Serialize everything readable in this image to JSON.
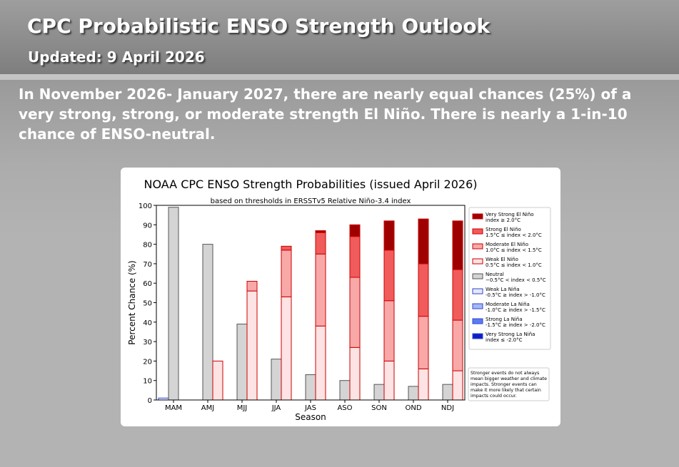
{
  "header": {
    "title": "CPC Probabilistic ENSO Strength Outlook",
    "updated": "Updated:  9 April 2026"
  },
  "summary": "In November 2026- January 2027, there are nearly equal chances (25%) of a very strong, strong, or moderate strength El Niño.  There is nearly a 1-in-10 chance of ENSO-neutral.",
  "colors": {
    "very_strong_el_nino": "#9e0000",
    "strong_el_nino": "#f05b5b",
    "moderate_el_nino": "#f9a8a8",
    "weak_el_nino": "#fde3e3",
    "neutral": "#d4d4d4",
    "weak_la_nina": "#e3e9ff",
    "moderate_la_nina": "#a3b8f8",
    "strong_la_nina": "#5b7cf0",
    "very_strong_la_nina": "#0b1fc9"
  },
  "chart_data": {
    "type": "bar",
    "title": "NOAA CPC ENSO Strength Probabilities (issued April 2026)",
    "subtitle": "based on thresholds in ERSSTv5 Relative Niño-3.4 index",
    "xlabel": "Season",
    "ylabel": "Percent Chance (%)",
    "ylim": [
      0,
      100
    ],
    "yticks": [
      0,
      10,
      20,
      30,
      40,
      50,
      60,
      70,
      80,
      90,
      100
    ],
    "categories": [
      "MAM",
      "AMJ",
      "MJJ",
      "JJA",
      "JAS",
      "ASO",
      "SON",
      "OND",
      "NDJ"
    ],
    "groups": [
      {
        "name": "La Niña",
        "values": [
          1,
          0,
          0,
          0,
          0,
          0,
          0,
          0,
          0
        ],
        "stack": [
          {
            "key": "weak_la_nina",
            "values": [
              1,
              0,
              0,
              0,
              0,
              0,
              0,
              0,
              0
            ]
          },
          {
            "key": "moderate_la_nina",
            "values": [
              0,
              0,
              0,
              0,
              0,
              0,
              0,
              0,
              0
            ]
          },
          {
            "key": "strong_la_nina",
            "values": [
              0,
              0,
              0,
              0,
              0,
              0,
              0,
              0,
              0
            ]
          },
          {
            "key": "very_strong_la_nina",
            "values": [
              0,
              0,
              0,
              0,
              0,
              0,
              0,
              0,
              0
            ]
          }
        ]
      },
      {
        "name": "Neutral",
        "values": [
          99,
          80,
          39,
          21,
          13,
          10,
          8,
          7,
          8
        ],
        "stack": [
          {
            "key": "neutral",
            "values": [
              99,
              80,
              39,
              21,
              13,
              10,
              8,
              7,
              8
            ]
          }
        ]
      },
      {
        "name": "El Niño",
        "values": [
          0,
          20,
          61,
          79,
          87,
          90,
          92,
          93,
          92
        ],
        "stack": [
          {
            "key": "weak_el_nino",
            "values": [
              0,
              20,
              56,
              53,
              38,
              27,
              20,
              16,
              15
            ]
          },
          {
            "key": "moderate_el_nino",
            "values": [
              0,
              0,
              5,
              24,
              37,
              36,
              31,
              27,
              26
            ]
          },
          {
            "key": "strong_el_nino",
            "values": [
              0,
              0,
              0,
              2,
              11,
              21,
              26,
              27,
              26
            ]
          },
          {
            "key": "very_strong_el_nino",
            "values": [
              0,
              0,
              0,
              0,
              1,
              6,
              15,
              23,
              25
            ]
          }
        ]
      }
    ],
    "legend": [
      {
        "key": "very_strong_el_nino",
        "label": "Very Strong El Niño",
        "range": "index ≥ 2.0°C"
      },
      {
        "key": "strong_el_nino",
        "label": "Strong El Niño",
        "range": "1.5°C ≤ index < 2.0°C"
      },
      {
        "key": "moderate_el_nino",
        "label": "Moderate El Niño",
        "range": "1.0°C ≤ index < 1.5°C"
      },
      {
        "key": "weak_el_nino",
        "label": "Weak El Niño",
        "range": "0.5°C ≤ index < 1.0°C"
      },
      {
        "key": "neutral",
        "label": "Neutral",
        "range": "−0.5°C < index < 0.5°C"
      },
      {
        "key": "weak_la_nina",
        "label": "Weak La Niña",
        "range": "-0.5°C ≥ index > -1.0°C"
      },
      {
        "key": "moderate_la_nina",
        "label": "Moderate La Niña",
        "range": "-1.0°C ≥ index > -1.5°C"
      },
      {
        "key": "strong_la_nina",
        "label": "Strong La Niña",
        "range": "-1.5°C ≥ index > -2.0°C"
      },
      {
        "key": "very_strong_la_nina",
        "label": "Very Strong La Niña",
        "range": "index ≤ -2.0°C"
      }
    ],
    "legend_position": "right",
    "note_lines": [
      "Stronger events do not always",
      "mean bigger weather and climate",
      "impacts. Stronger events can",
      "make it more likely that certain",
      "impacts could occur."
    ]
  }
}
